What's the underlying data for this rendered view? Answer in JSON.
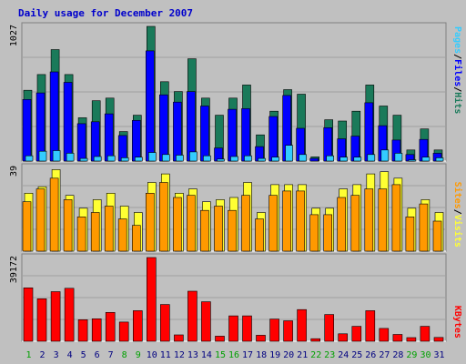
{
  "chart_data": [
    {
      "type": "bar",
      "title": "Daily usage for December 2007",
      "categories": [
        "1",
        "2",
        "3",
        "4",
        "5",
        "6",
        "7",
        "8",
        "9",
        "10",
        "11",
        "12",
        "13",
        "14",
        "15",
        "16",
        "17",
        "18",
        "19",
        "20",
        "21",
        "22",
        "23",
        "24",
        "25",
        "26",
        "27",
        "28",
        "29",
        "30",
        "31"
      ],
      "weekend_days": [
        "1",
        "8",
        "9",
        "15",
        "16",
        "22",
        "23",
        "29",
        "30"
      ],
      "ymax_label": "1027",
      "ymax": 1027,
      "series": [
        {
          "name": "Hits",
          "color": "#1a7a5a",
          "values": [
            540,
            660,
            850,
            660,
            330,
            460,
            480,
            225,
            350,
            1027,
            605,
            530,
            780,
            480,
            350,
            480,
            580,
            200,
            380,
            545,
            510,
            32,
            315,
            305,
            380,
            580,
            420,
            350,
            85,
            245,
            85
          ]
        },
        {
          "name": "Files",
          "color": "#0000ff",
          "values": [
            470,
            520,
            680,
            600,
            285,
            300,
            360,
            195,
            310,
            840,
            505,
            450,
            530,
            420,
            100,
            395,
            400,
            110,
            340,
            500,
            250,
            20,
            255,
            170,
            190,
            445,
            270,
            160,
            50,
            165,
            60
          ]
        },
        {
          "name": "Pages",
          "color": "#33ccff",
          "values": [
            40,
            75,
            80,
            60,
            20,
            35,
            40,
            25,
            30,
            65,
            50,
            45,
            70,
            40,
            15,
            35,
            40,
            20,
            30,
            120,
            50,
            0,
            40,
            30,
            30,
            50,
            85,
            60,
            10,
            30,
            25
          ]
        }
      ],
      "ylabel_parts": [
        "Pages",
        "/",
        "Files",
        "/",
        "Hits"
      ]
    },
    {
      "type": "bar",
      "ymax_label": "39",
      "ymax": 39,
      "series": [
        {
          "name": "Visits",
          "color": "#ffff33",
          "values": [
            27,
            30,
            38,
            26,
            20,
            24,
            27,
            21,
            18,
            32,
            36,
            27,
            29,
            23,
            24,
            25,
            32,
            18,
            31,
            31,
            31,
            20,
            20,
            29,
            31,
            36,
            37,
            34,
            20,
            24,
            18
          ]
        },
        {
          "name": "Sites",
          "color": "#ff9900",
          "values": [
            23,
            29,
            34,
            24,
            16,
            18,
            21,
            15,
            12,
            27,
            32,
            25,
            26,
            19,
            21,
            19,
            26,
            15,
            26,
            28,
            28,
            17,
            17,
            25,
            26,
            29,
            29,
            31,
            16,
            22,
            14
          ]
        }
      ],
      "ylabel_parts": [
        "Sites",
        "/",
        "Visits"
      ]
    },
    {
      "type": "bar",
      "ymax_label": "39172",
      "ymax": 39172,
      "series": [
        {
          "name": "KBytes",
          "color": "#ff0000",
          "values": [
            25000,
            19900,
            23200,
            24800,
            10100,
            10500,
            13500,
            9000,
            14300,
            39172,
            17200,
            3000,
            23400,
            18500,
            2400,
            11900,
            11900,
            2800,
            10400,
            9600,
            14800,
            1200,
            12500,
            3500,
            7000,
            14300,
            6000,
            3200,
            1700,
            7000,
            1800
          ]
        }
      ],
      "ylabel_parts": [
        "KBytes"
      ]
    }
  ],
  "colors": {
    "weekday_label": "#000080",
    "weekend_label": "#00a000",
    "panel_bg": "#c0c0c0",
    "title": "#0000cc"
  }
}
